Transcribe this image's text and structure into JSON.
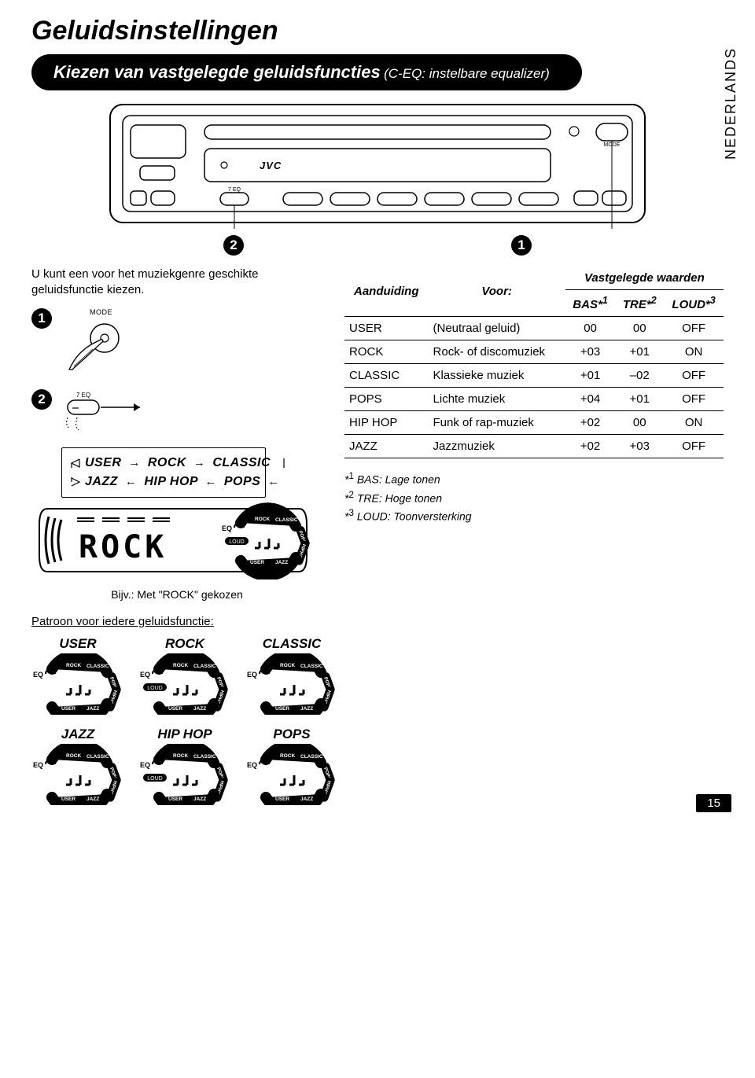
{
  "title": "Geluidsinstellingen",
  "language_tab": "NEDERLANDS",
  "section": {
    "main": "Kiezen van vastgelegde geluidsfuncties",
    "sub": "(C-EQ: instelbare equalizer)"
  },
  "intro": "U kunt een voor het muziekgenre geschikte geluidsfunctie kiezen.",
  "step_labels": {
    "one": "1",
    "two": "2"
  },
  "mode_button_label": "MODE",
  "eq_button_label": "7 EQ",
  "brand": "JVC",
  "cycle": {
    "row1": [
      "USER",
      "ROCK",
      "CLASSIC"
    ],
    "row2": [
      "JAZZ",
      "HIP HOP",
      "POPS"
    ]
  },
  "display_example_text": "ROCK",
  "display_caption": "Bijv.: Met \"ROCK\" gekozen",
  "patroon_heading": "Patroon voor iedere geluidsfunctie:",
  "eq_names_row1": [
    "USER",
    "ROCK",
    "CLASSIC"
  ],
  "eq_names_row2": [
    "JAZZ",
    "HIP HOP",
    "POPS"
  ],
  "eq_loud_flags_row1": [
    false,
    true,
    false
  ],
  "eq_loud_flags_row2": [
    false,
    true,
    false
  ],
  "eq_icon_labels": {
    "eq": "EQ",
    "rock": "ROCK",
    "classic": "CLASSIC",
    "pops": "POPS",
    "hiphop": "HIPHOP",
    "jazz": "JAZZ",
    "user": "USER",
    "loud": "LOUD"
  },
  "table": {
    "head": {
      "indication": "Aanduiding",
      "for": "Voor:",
      "group": "Vastgelegde waarden",
      "bas": "BAS*",
      "bas_sup": "1",
      "tre": "TRE*",
      "tre_sup": "2",
      "loud": "LOUD*",
      "loud_sup": "3"
    },
    "rows": [
      {
        "ind": "USER",
        "for": "(Neutraal geluid)",
        "bas": "00",
        "tre": "00",
        "loud": "OFF"
      },
      {
        "ind": "ROCK",
        "for": "Rock- of discomuziek",
        "bas": "+03",
        "tre": "+01",
        "loud": "ON"
      },
      {
        "ind": "CLASSIC",
        "for": "Klassieke muziek",
        "bas": "+01",
        "tre": "–02",
        "loud": "OFF"
      },
      {
        "ind": "POPS",
        "for": "Lichte muziek",
        "bas": "+04",
        "tre": "+01",
        "loud": "OFF"
      },
      {
        "ind": "HIP HOP",
        "for": "Funk of rap-muziek",
        "bas": "+02",
        "tre": "00",
        "loud": "ON"
      },
      {
        "ind": "JAZZ",
        "for": "Jazzmuziek",
        "bas": "+02",
        "tre": "+03",
        "loud": "OFF"
      }
    ]
  },
  "footnotes": {
    "f1": "BAS: Lage tonen",
    "f2": "TRE: Hoge tonen",
    "f3": "LOUD: Toonversterking"
  },
  "page_number": "15",
  "colors": {
    "fg": "#000000",
    "bg": "#ffffff"
  }
}
